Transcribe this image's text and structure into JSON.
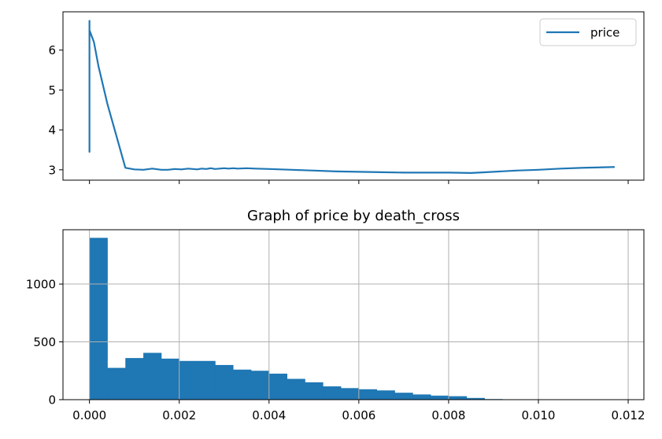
{
  "chart_data": [
    {
      "type": "line",
      "title": "",
      "xlabel": "",
      "ylabel": "",
      "grid": false,
      "legend_position": "upper right",
      "xlim": [
        -0.00059,
        0.01235
      ],
      "ylim": [
        2.74,
        6.96
      ],
      "x_ticks": [
        0.0,
        0.002,
        0.004,
        0.006,
        0.008,
        0.01,
        0.012
      ],
      "x_ticklabels_visible": false,
      "y_ticks": [
        3,
        4,
        5,
        6
      ],
      "y_ticklabels": [
        "3",
        "4",
        "5",
        "6"
      ],
      "series": [
        {
          "name": "price",
          "color": "#1f77b4",
          "x": [
            0.0,
            0.0,
            0.0,
            0.0,
            0.0,
            0.0,
            0.0,
            0.0,
            5e-05,
            0.0001,
            0.0002,
            0.0004,
            0.0006,
            0.0008,
            0.001,
            0.0012,
            0.0014,
            0.0016,
            0.00175,
            0.0019,
            0.00205,
            0.0022,
            0.0023,
            0.0024,
            0.0025,
            0.0026,
            0.0027,
            0.0028,
            0.0029,
            0.003,
            0.0031,
            0.0032,
            0.0033,
            0.0035,
            0.0037,
            0.004,
            0.0045,
            0.005,
            0.0055,
            0.006,
            0.0065,
            0.007,
            0.0075,
            0.008,
            0.0085,
            0.009,
            0.0095,
            0.01,
            0.0105,
            0.011,
            0.0117
          ],
          "y": [
            6.75,
            3.45,
            6.7,
            3.5,
            5.0,
            4.2,
            6.6,
            6.5,
            6.35,
            6.2,
            5.6,
            4.65,
            3.85,
            3.05,
            3.01,
            3.0,
            3.03,
            3.0,
            3.0,
            3.02,
            3.01,
            3.03,
            3.02,
            3.01,
            3.03,
            3.02,
            3.04,
            3.02,
            3.03,
            3.04,
            3.03,
            3.04,
            3.03,
            3.04,
            3.03,
            3.02,
            3.0,
            2.98,
            2.96,
            2.95,
            2.94,
            2.93,
            2.93,
            2.93,
            2.92,
            2.95,
            2.98,
            3.0,
            3.03,
            3.05,
            3.07
          ]
        }
      ]
    },
    {
      "type": "bar",
      "title": "Graph of price by death_cross",
      "xlabel": "",
      "ylabel": "",
      "grid": true,
      "xlim": [
        -0.00059,
        0.01235
      ],
      "ylim": [
        0,
        1470
      ],
      "x_ticks": [
        0.0,
        0.002,
        0.004,
        0.006,
        0.008,
        0.01,
        0.012
      ],
      "x_ticklabels": [
        "0.000",
        "0.002",
        "0.004",
        "0.006",
        "0.008",
        "0.010",
        "0.012"
      ],
      "y_ticks": [
        0,
        500,
        1000
      ],
      "y_ticklabels": [
        "0",
        "500",
        "1000"
      ],
      "bin_width": 0.0004,
      "bin_start": 0.0,
      "color": "#1f77b4",
      "values": [
        1400,
        275,
        360,
        405,
        355,
        335,
        335,
        300,
        260,
        250,
        225,
        180,
        150,
        115,
        100,
        90,
        80,
        60,
        45,
        35,
        30,
        15,
        5,
        3,
        2,
        1,
        1,
        1,
        1,
        1
      ]
    }
  ]
}
